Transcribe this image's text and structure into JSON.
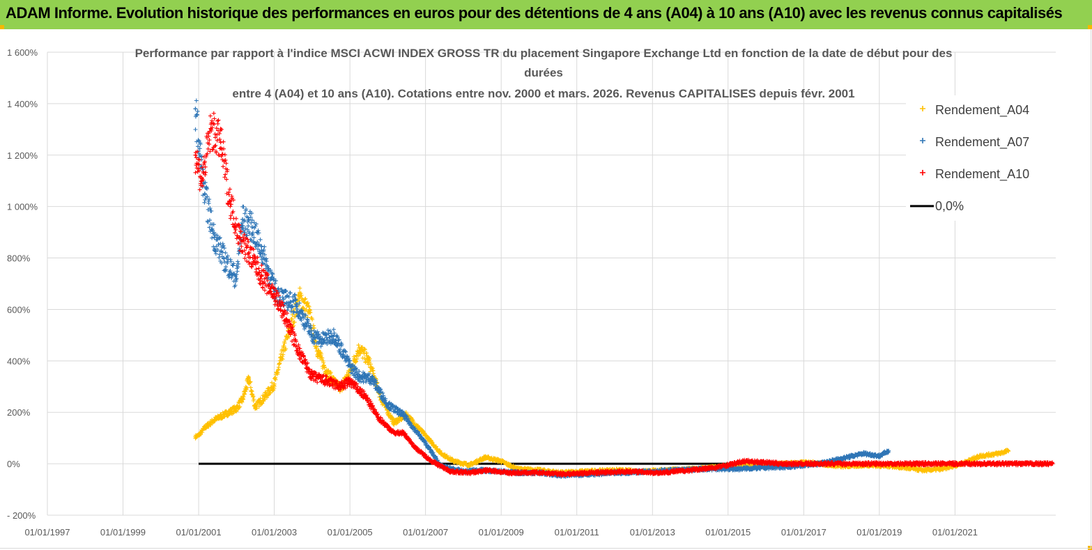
{
  "banner": {
    "title": "ADAM Informe. Evolution historique des performances en euros pour des détentions de 4 ans (A04) à 10 ans (A10) avec les revenus connus capitalisés"
  },
  "colors": {
    "banner": "#92d050",
    "series_A04": "#ffc000",
    "series_A07": "#2e75b6",
    "series_A10": "#ff0000",
    "zero_line": "#000000",
    "grid": "#d9d9d9"
  },
  "chart_data": {
    "type": "scatter",
    "title_lines": [
      "Performance par rapport à l'indice MSCI ACWI INDEX GROSS TR  du placement Singapore Exchange Ltd en fonction de la date de début pour des",
      "durées",
      "entre 4 (A04) et 10 ans (A10). Cotations entre nov. 2000 et mars. 2026. Revenus CAPITALISES depuis févr. 2001"
    ],
    "x_axis": {
      "type": "date",
      "min": "1997-01-01",
      "max": "2023-09-01",
      "tick_labels": [
        "01/01/1997",
        "01/01/1999",
        "01/01/2001",
        "01/01/2003",
        "01/01/2005",
        "01/01/2007",
        "01/01/2009",
        "01/01/2011",
        "01/01/2013",
        "01/01/2015",
        "01/01/2017",
        "01/01/2019",
        "01/01/2021"
      ]
    },
    "y_axis": {
      "min": -200,
      "max": 1600,
      "step": 200,
      "unit": "%",
      "tick_labels": [
        "- 200%",
        "0%",
        "200%",
        "400%",
        "600%",
        "800%",
        "1 000%",
        "1 200%",
        "1 400%",
        "1 600%"
      ]
    },
    "grid": {
      "vertical": true,
      "horizontal": true
    },
    "legend": {
      "position": "right",
      "entries": [
        "Rendement_A04",
        "Rendement_A07",
        "Rendement_A10",
        "0,0%"
      ]
    },
    "marker": "+",
    "series": [
      {
        "name": "Rendement_A04",
        "color": "#ffc000",
        "points": [
          [
            "2000-12-01",
            105
          ],
          [
            "2001-01-01",
            110
          ],
          [
            "2001-03-01",
            140
          ],
          [
            "2001-06-01",
            170
          ],
          [
            "2001-09-01",
            190
          ],
          [
            "2002-01-01",
            215
          ],
          [
            "2002-03-01",
            250
          ],
          [
            "2002-05-01",
            330
          ],
          [
            "2002-07-01",
            220
          ],
          [
            "2002-10-01",
            260
          ],
          [
            "2003-01-01",
            310
          ],
          [
            "2003-04-01",
            440
          ],
          [
            "2003-06-01",
            520
          ],
          [
            "2003-09-01",
            650
          ],
          [
            "2003-12-01",
            590
          ],
          [
            "2004-03-01",
            430
          ],
          [
            "2004-06-01",
            350
          ],
          [
            "2004-10-01",
            290
          ],
          [
            "2005-01-01",
            360
          ],
          [
            "2005-04-01",
            450
          ],
          [
            "2005-07-01",
            400
          ],
          [
            "2005-11-01",
            250
          ],
          [
            "2006-03-01",
            160
          ],
          [
            "2006-07-01",
            190
          ],
          [
            "2007-01-01",
            110
          ],
          [
            "2007-06-01",
            40
          ],
          [
            "2007-10-01",
            10
          ],
          [
            "2008-03-01",
            -5
          ],
          [
            "2008-08-01",
            25
          ],
          [
            "2009-01-01",
            10
          ],
          [
            "2009-06-01",
            -20
          ],
          [
            "2010-01-01",
            -25
          ],
          [
            "2010-08-01",
            -35
          ],
          [
            "2011-04-01",
            -30
          ],
          [
            "2012-01-01",
            -25
          ],
          [
            "2012-09-01",
            -30
          ],
          [
            "2013-06-01",
            -25
          ],
          [
            "2014-03-01",
            -20
          ],
          [
            "2015-01-01",
            -10
          ],
          [
            "2015-09-01",
            -5
          ],
          [
            "2016-06-01",
            0
          ],
          [
            "2017-03-01",
            5
          ],
          [
            "2018-01-01",
            -10
          ],
          [
            "2018-09-01",
            -5
          ],
          [
            "2019-06-01",
            -10
          ],
          [
            "2020-03-01",
            -25
          ],
          [
            "2020-09-01",
            -20
          ],
          [
            "2021-03-01",
            0
          ],
          [
            "2021-09-01",
            30
          ],
          [
            "2022-03-01",
            40
          ],
          [
            "2022-06-01",
            50
          ]
        ]
      },
      {
        "name": "Rendement_A07",
        "color": "#2e75b6",
        "points": [
          [
            "2000-12-01",
            1380
          ],
          [
            "2001-01-15",
            1200
          ],
          [
            "2001-03-01",
            1050
          ],
          [
            "2001-06-01",
            880
          ],
          [
            "2001-09-01",
            800
          ],
          [
            "2002-01-01",
            720
          ],
          [
            "2002-03-01",
            950
          ],
          [
            "2002-06-01",
            920
          ],
          [
            "2002-09-01",
            830
          ],
          [
            "2003-01-01",
            680
          ],
          [
            "2003-04-01",
            640
          ],
          [
            "2003-08-01",
            620
          ],
          [
            "2004-01-01",
            500
          ],
          [
            "2004-04-01",
            480
          ],
          [
            "2004-08-01",
            500
          ],
          [
            "2005-01-01",
            380
          ],
          [
            "2005-04-01",
            340
          ],
          [
            "2005-08-01",
            330
          ],
          [
            "2006-01-01",
            230
          ],
          [
            "2006-06-01",
            190
          ],
          [
            "2007-01-01",
            80
          ],
          [
            "2007-06-01",
            -10
          ],
          [
            "2008-01-01",
            -30
          ],
          [
            "2008-06-01",
            -25
          ],
          [
            "2009-01-01",
            -30
          ],
          [
            "2009-06-01",
            -35
          ],
          [
            "2010-01-01",
            -35
          ],
          [
            "2010-08-01",
            -45
          ],
          [
            "2011-06-01",
            -40
          ],
          [
            "2012-03-01",
            -35
          ],
          [
            "2012-12-01",
            -30
          ],
          [
            "2013-08-01",
            -25
          ],
          [
            "2014-06-01",
            -20
          ],
          [
            "2015-04-01",
            -20
          ],
          [
            "2016-01-01",
            -15
          ],
          [
            "2016-10-01",
            -10
          ],
          [
            "2017-06-01",
            0
          ],
          [
            "2018-01-01",
            20
          ],
          [
            "2018-08-01",
            40
          ],
          [
            "2019-01-01",
            30
          ],
          [
            "2019-04-01",
            50
          ]
        ]
      },
      {
        "name": "Rendement_A10",
        "color": "#ff0000",
        "points": [
          [
            "2000-12-01",
            1200
          ],
          [
            "2001-02-01",
            1100
          ],
          [
            "2001-05-01",
            1300
          ],
          [
            "2001-08-01",
            1250
          ],
          [
            "2001-11-01",
            1020
          ],
          [
            "2002-02-01",
            880
          ],
          [
            "2002-05-01",
            820
          ],
          [
            "2002-09-01",
            730
          ],
          [
            "2003-01-01",
            660
          ],
          [
            "2003-05-01",
            560
          ],
          [
            "2003-09-01",
            430
          ],
          [
            "2004-01-01",
            340
          ],
          [
            "2004-06-01",
            320
          ],
          [
            "2004-10-01",
            300
          ],
          [
            "2005-01-01",
            320
          ],
          [
            "2005-06-01",
            260
          ],
          [
            "2005-10-01",
            180
          ],
          [
            "2006-03-01",
            120
          ],
          [
            "2006-06-01",
            120
          ],
          [
            "2006-10-01",
            60
          ],
          [
            "2007-03-01",
            10
          ],
          [
            "2007-09-01",
            -30
          ],
          [
            "2008-03-01",
            -35
          ],
          [
            "2008-09-01",
            -25
          ],
          [
            "2009-03-01",
            -35
          ],
          [
            "2010-01-01",
            -35
          ],
          [
            "2010-09-01",
            -40
          ],
          [
            "2011-06-01",
            -35
          ],
          [
            "2012-06-01",
            -30
          ],
          [
            "2013-03-01",
            -35
          ],
          [
            "2014-01-01",
            -25
          ],
          [
            "2014-09-01",
            -15
          ],
          [
            "2015-03-01",
            0
          ],
          [
            "2015-06-01",
            10
          ],
          [
            "2016-01-01",
            5
          ],
          [
            "2016-06-01",
            0
          ],
          [
            "2018-01-01",
            0
          ],
          [
            "2020-01-01",
            0
          ],
          [
            "2022-01-01",
            0
          ],
          [
            "2023-08-01",
            0
          ]
        ]
      },
      {
        "name": "0,0%",
        "color": "#000000",
        "line": true,
        "points": [
          [
            "2001-01-01",
            0
          ],
          [
            "2015-06-01",
            0
          ]
        ]
      }
    ]
  }
}
